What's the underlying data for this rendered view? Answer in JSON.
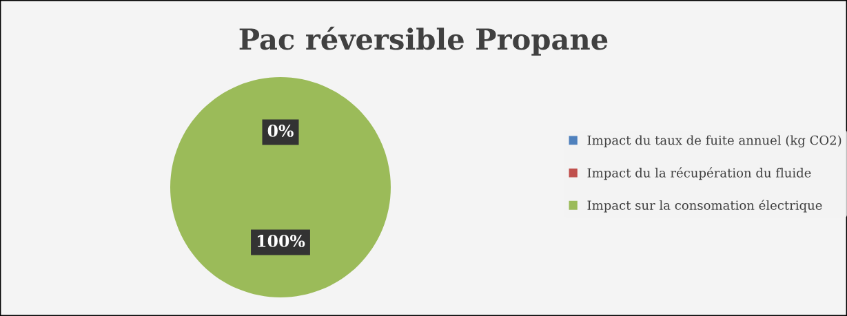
{
  "chart_data": {
    "type": "pie",
    "title": "Pac réversible Propane",
    "categories": [
      "Impact du taux de fuite annuel (kg CO2)",
      "Impact du la récupération du fluide",
      "Impact sur la consomation électrique"
    ],
    "values": [
      0,
      0,
      100
    ],
    "colors": [
      "#4f81bd",
      "#c0504d",
      "#9bbb59"
    ],
    "value_labels": [
      "0%",
      null,
      "100%"
    ],
    "legend": "right"
  }
}
